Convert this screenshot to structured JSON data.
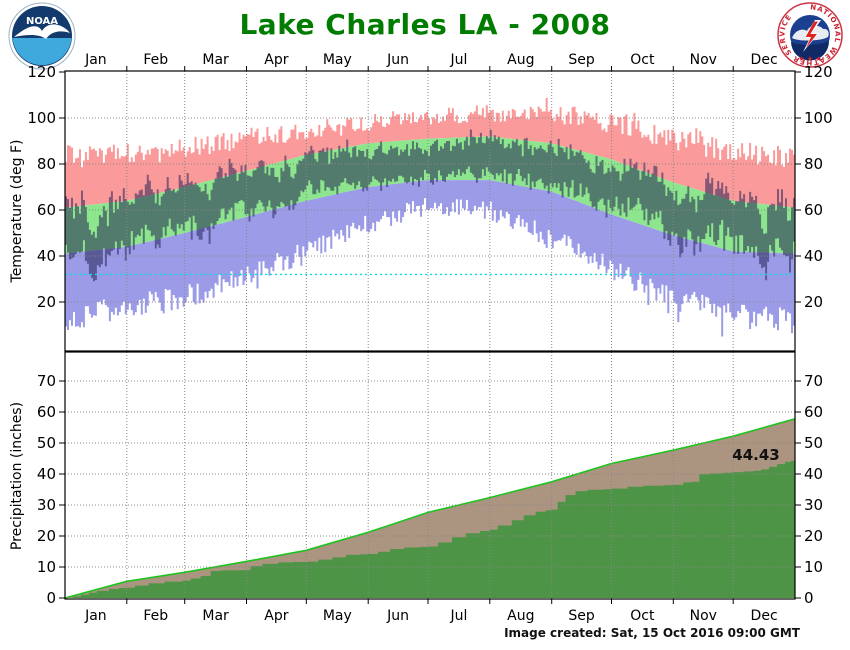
{
  "header": {
    "title": "Lake Charles LA - 2008",
    "title_color": "#007d00"
  },
  "icons": {
    "noaa_logo": "noaa-circular-logo",
    "nws_logo": "national-weather-service-logo"
  },
  "footer": {
    "created_text": "Image created: Sat, 15 Oct 2016 09:00 GMT"
  },
  "chart_data": [
    {
      "type": "area",
      "name": "daily-temperature-with-climate-bands",
      "ylabel": "Temperature (deg F)",
      "ylim": [
        0,
        120
      ],
      "yticks": [
        20,
        40,
        60,
        80,
        100,
        120
      ],
      "grid": "dotted",
      "months": [
        "Jan",
        "Feb",
        "Mar",
        "Apr",
        "May",
        "Jun",
        "Jul",
        "Aug",
        "Sep",
        "Oct",
        "Nov",
        "Dec"
      ],
      "month_start_days": [
        0,
        31,
        60,
        91,
        121,
        152,
        182,
        213,
        244,
        274,
        305,
        335,
        366
      ],
      "freezing_line": 32,
      "freezing_line_color": "#00e0e0",
      "grid_color": "#888888",
      "daily_bar_color": "rgba(35,35,85,0.55)",
      "series": [
        {
          "name": "record-high",
          "color": "#fb9a9a",
          "anchors": [
            83,
            84,
            87,
            91,
            94,
            98,
            101,
            102,
            102,
            98,
            91,
            85,
            83
          ]
        },
        {
          "name": "normal-high",
          "color": "#8de68d",
          "anchors": [
            61,
            64,
            70,
            77,
            84,
            89,
            91,
            92,
            89,
            82,
            72,
            64,
            61
          ]
        },
        {
          "name": "normal-low",
          "color": "#8de68d",
          "anchors": [
            41,
            44,
            50,
            57,
            64,
            70,
            73,
            73,
            68,
            58,
            49,
            42,
            41
          ]
        },
        {
          "name": "record-low",
          "color": "#9b9be8",
          "anchors": [
            13,
            17,
            22,
            31,
            42,
            54,
            62,
            60,
            48,
            34,
            22,
            14,
            13
          ]
        }
      ]
    },
    {
      "type": "area",
      "name": "accumulated-precipitation",
      "ylabel": "Precipitation (inches)",
      "ylim": [
        0,
        79
      ],
      "yticks": [
        0,
        10,
        20,
        30,
        40,
        50,
        60,
        70
      ],
      "grid": "dotted",
      "months": [
        "Jan",
        "Feb",
        "Mar",
        "Apr",
        "May",
        "Jun",
        "Jul",
        "Aug",
        "Sep",
        "Oct",
        "Nov",
        "Dec"
      ],
      "annotation": {
        "text": "44.43",
        "value": 44.43
      },
      "actual_total": 44.43,
      "normal_total": 57.8,
      "colors": {
        "actual_fill": "#4e9447",
        "normal_fill": "#ab9480",
        "normal_line": "#1ec41e"
      },
      "normal_cumulative": [
        0,
        5.4,
        8.3,
        11.8,
        15.4,
        21.2,
        27.6,
        32.4,
        37.5,
        43.4,
        47.7,
        52.2,
        57.8
      ],
      "actual_cumulative_points": [
        [
          0,
          0
        ],
        [
          4,
          0.5
        ],
        [
          8,
          1.1
        ],
        [
          12,
          1.7
        ],
        [
          16,
          2.3
        ],
        [
          22,
          2.9
        ],
        [
          27,
          3.2
        ],
        [
          31,
          3.3
        ],
        [
          35,
          4.0
        ],
        [
          42,
          4.7
        ],
        [
          50,
          5.3
        ],
        [
          59,
          5.6
        ],
        [
          63,
          6.3
        ],
        [
          68,
          7.1
        ],
        [
          73,
          8.7
        ],
        [
          78,
          8.9
        ],
        [
          88,
          9.0
        ],
        [
          93,
          10.3
        ],
        [
          99,
          11.0
        ],
        [
          107,
          11.5
        ],
        [
          114,
          11.6
        ],
        [
          121,
          11.7
        ],
        [
          127,
          12.4
        ],
        [
          134,
          13.1
        ],
        [
          141,
          13.9
        ],
        [
          148,
          14.1
        ],
        [
          152,
          14.2
        ],
        [
          157,
          14.9
        ],
        [
          163,
          15.8
        ],
        [
          170,
          16.3
        ],
        [
          178,
          16.5
        ],
        [
          182,
          16.6
        ],
        [
          187,
          17.9
        ],
        [
          194,
          19.6
        ],
        [
          201,
          20.9
        ],
        [
          208,
          21.6
        ],
        [
          213,
          22.0
        ],
        [
          217,
          23.4
        ],
        [
          224,
          25.1
        ],
        [
          230,
          26.7
        ],
        [
          236,
          27.8
        ],
        [
          241,
          28.3
        ],
        [
          244,
          28.5
        ],
        [
          247,
          31.0
        ],
        [
          251,
          33.2
        ],
        [
          256,
          34.5
        ],
        [
          262,
          34.9
        ],
        [
          270,
          35.1
        ],
        [
          274,
          35.3
        ],
        [
          282,
          35.9
        ],
        [
          290,
          36.2
        ],
        [
          300,
          36.4
        ],
        [
          305,
          36.5
        ],
        [
          310,
          37.3
        ],
        [
          314,
          37.5
        ],
        [
          318,
          39.9
        ],
        [
          323,
          40.2
        ],
        [
          330,
          40.4
        ],
        [
          335,
          40.6
        ],
        [
          340,
          40.8
        ],
        [
          345,
          41.0
        ],
        [
          349,
          41.5
        ],
        [
          353,
          42.3
        ],
        [
          357,
          43.2
        ],
        [
          361,
          43.9
        ],
        [
          364,
          44.3
        ],
        [
          366,
          44.43
        ]
      ]
    }
  ]
}
